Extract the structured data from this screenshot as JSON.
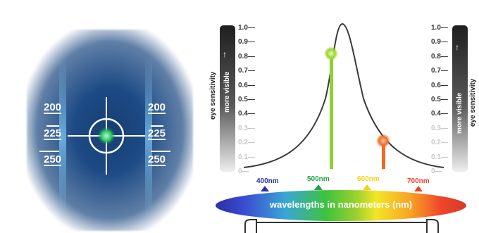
{
  "display": {
    "scale_left": [
      "200",
      "225",
      "250"
    ],
    "scale_right": [
      "200",
      "225",
      "250"
    ]
  },
  "sensitivity_axis": {
    "ticks": [
      "1.0",
      "0.9",
      "0.8",
      "0.7",
      "0.6",
      "0.5",
      "0.4",
      "0.3",
      "0.2",
      "0.1",
      "0"
    ],
    "title": "eye sensitivity",
    "bar_label": "more visible"
  },
  "spectrum": {
    "band_label": "wavelengths in nanometers (nm)",
    "markers": [
      {
        "label": "400nm",
        "color": "#2b2ea8"
      },
      {
        "label": "500nm",
        "color": "#24a04a"
      },
      {
        "label": "600nm",
        "color": "#f2d21a"
      },
      {
        "label": "700nm",
        "color": "#e8442d"
      }
    ]
  },
  "colors": {
    "green_marker": "#8fd22e",
    "orange_marker": "#f06a26"
  }
}
